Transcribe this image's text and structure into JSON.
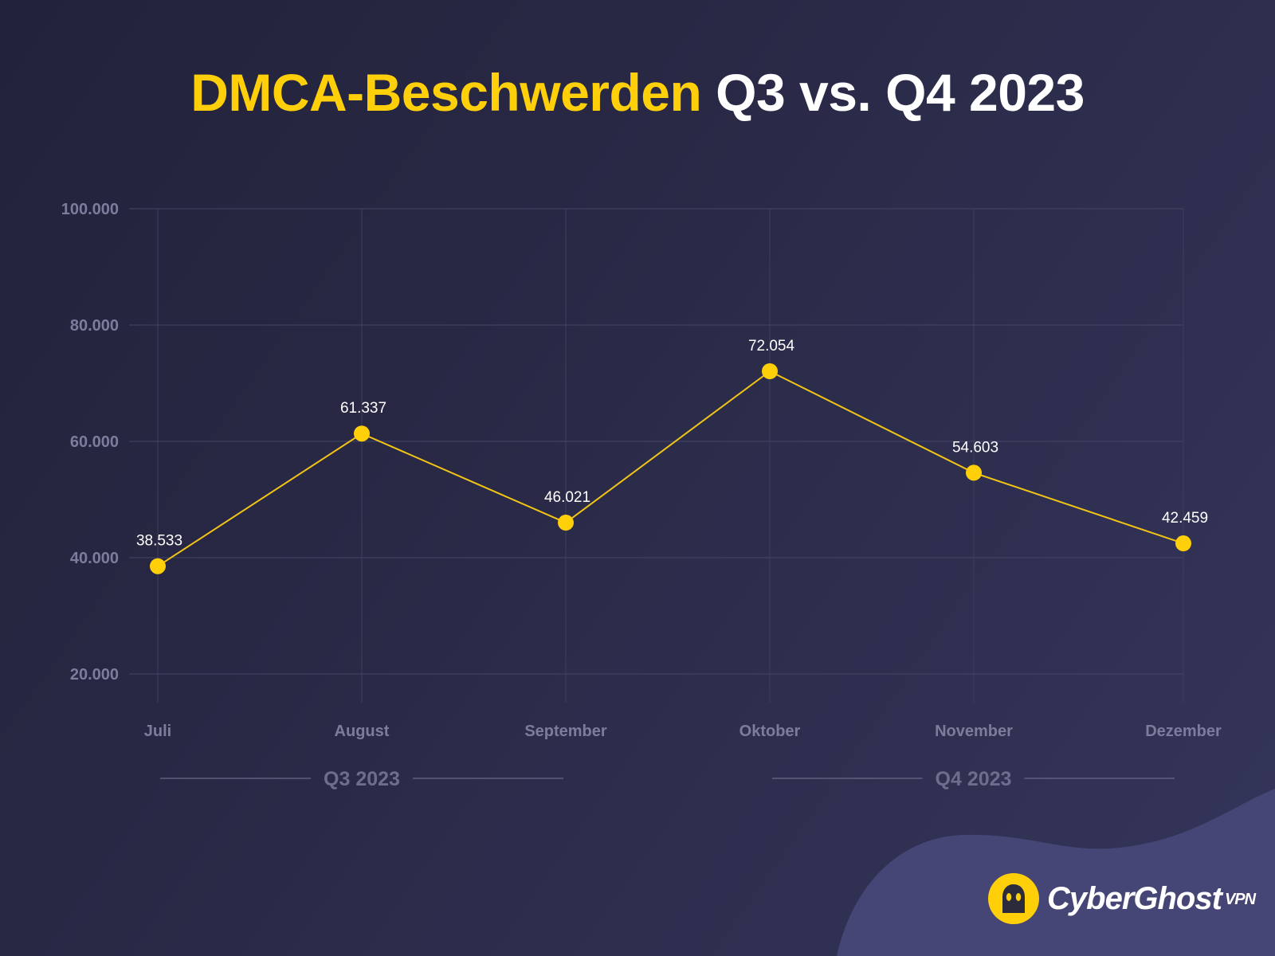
{
  "title": {
    "highlight": "DMCA-Beschwerden",
    "rest": "Q3 vs. Q4 2023"
  },
  "colors": {
    "accent": "#ffcf0a",
    "line": "#f2c416",
    "background": "#2a2a48",
    "blob": "#4a4a7a"
  },
  "chart_data": {
    "type": "line",
    "title": "DMCA-Beschwerden Q3 vs. Q4 2023",
    "xlabel": "",
    "ylabel": "",
    "categories": [
      "Juli",
      "August",
      "September",
      "Oktober",
      "November",
      "Dezember"
    ],
    "values": [
      38533,
      61337,
      46021,
      72054,
      54603,
      42459
    ],
    "data_labels": [
      "38.533",
      "61.337",
      "46.021",
      "72.054",
      "54.603",
      "42.459"
    ],
    "ylim": [
      20000,
      100000
    ],
    "yticks": [
      20000,
      40000,
      60000,
      80000,
      100000
    ],
    "ytick_labels": [
      "20.000",
      "40.000",
      "60.000",
      "80.000",
      "100.000"
    ],
    "grid": true,
    "groups": [
      {
        "label": "Q3 2023",
        "from": 0,
        "to": 2
      },
      {
        "label": "Q4 2023",
        "from": 3,
        "to": 5
      }
    ]
  },
  "logo": {
    "brand": "CyberGhost",
    "suffix": "VPN",
    "icon": "ghost-icon"
  }
}
